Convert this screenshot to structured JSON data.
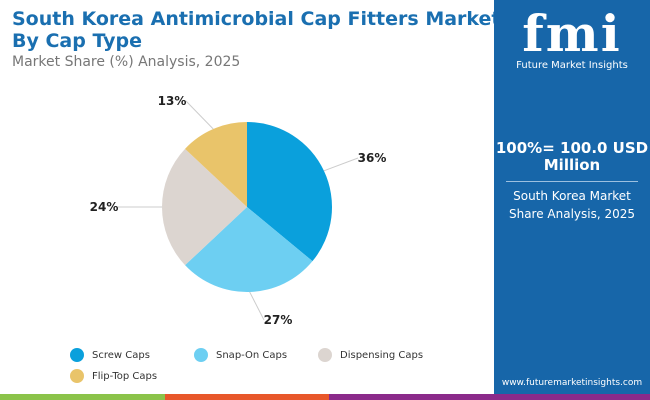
{
  "header": {
    "title": "South Korea Antimicrobial Cap Fitters Market By Cap Type",
    "subtitle": "Market Share (%) Analysis, 2025"
  },
  "sidebar": {
    "logo_text": "fmi",
    "logo_name": "Future Market Insights",
    "total": "100%= 100.0 USD Million",
    "desc": "South Korea Market Share Analysis, 2025",
    "url": "www.futuremarketinsights.com"
  },
  "colors": {
    "sidebar": "#1766a9",
    "title": "#1a6fb0",
    "stripes": [
      "#8bc34a",
      "#e8572a",
      "#8b2a8a"
    ]
  },
  "chart_data": {
    "type": "pie",
    "start": "top",
    "direction": "clockwise",
    "categories": [
      "Screw Caps",
      "Snap-On Caps",
      "Dispensing Caps",
      "Flip-Top Caps"
    ],
    "values": [
      36,
      27,
      24,
      13
    ],
    "labels": [
      "36%",
      "27%",
      "24%",
      "13%"
    ],
    "colors": [
      "#0aa0dc",
      "#6dcff2",
      "#dcd5d0",
      "#e9c46a"
    ],
    "legend": "bottom"
  }
}
